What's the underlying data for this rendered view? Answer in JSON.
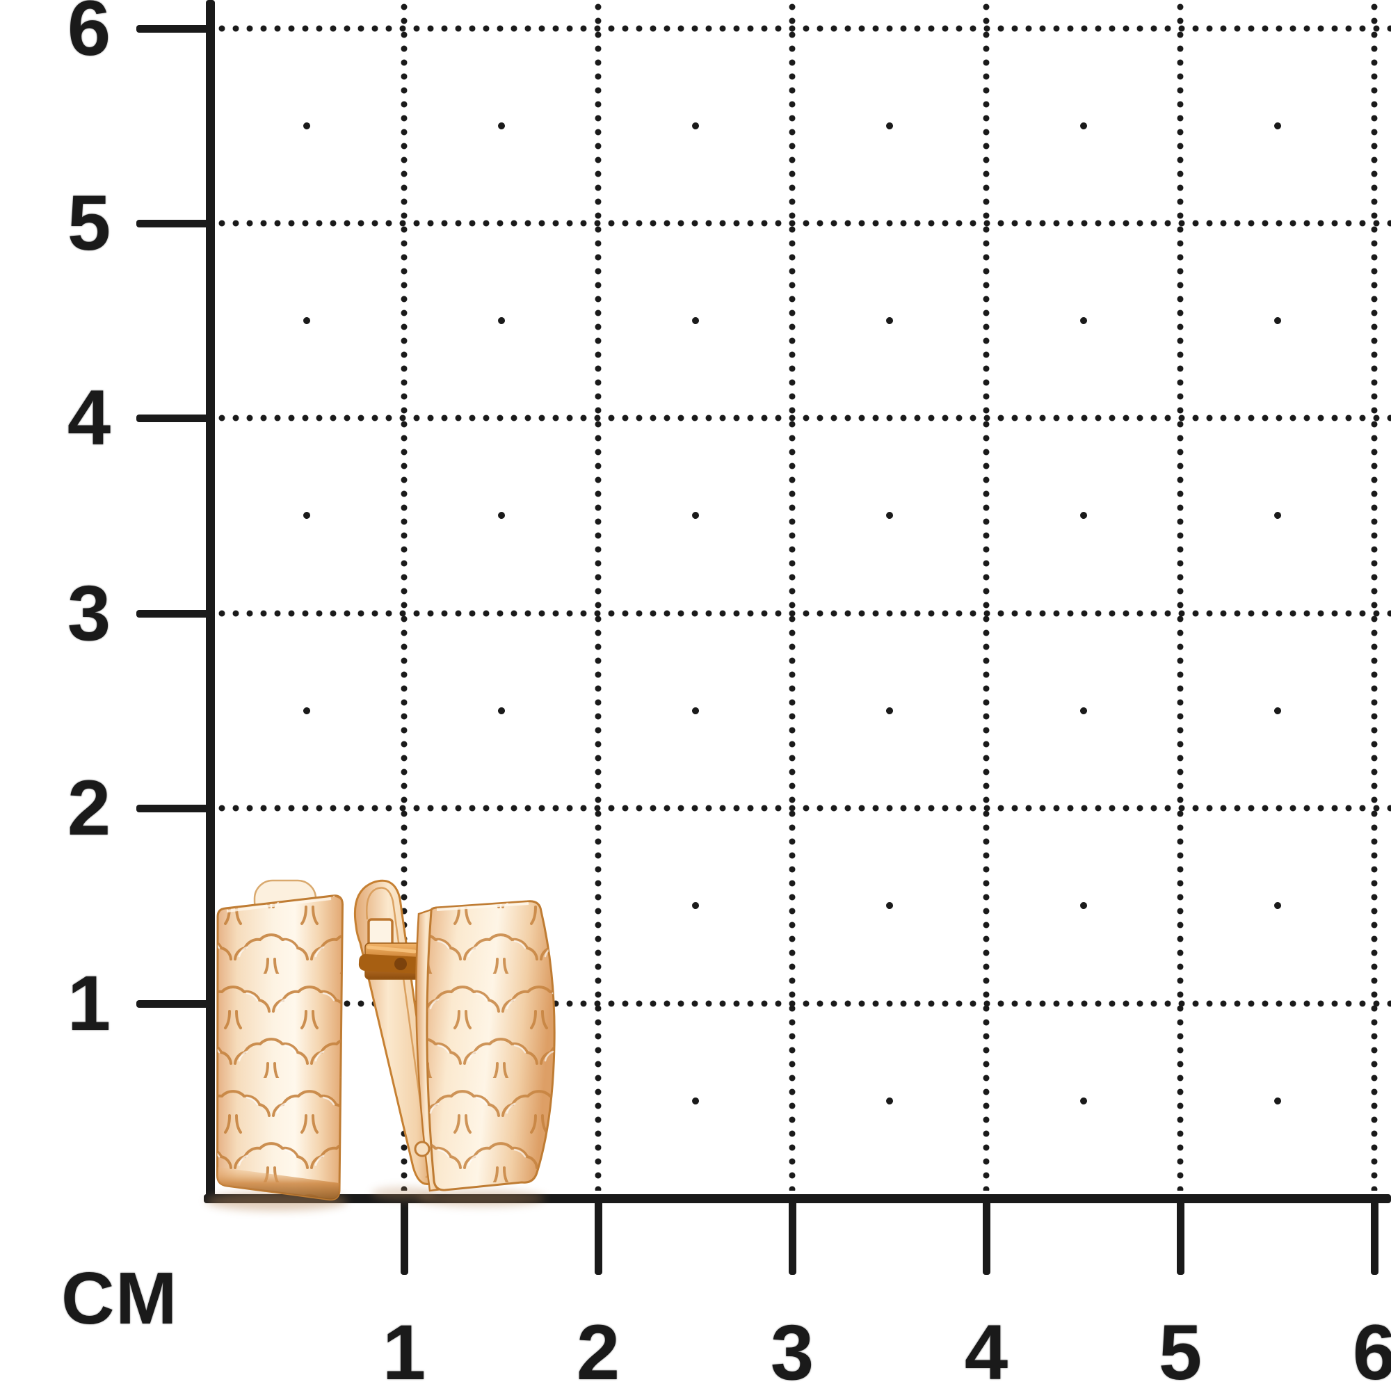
{
  "ruler": {
    "unit_label": "СМ",
    "left_axis_labels": [
      "6",
      "5",
      "4",
      "3",
      "2",
      "1"
    ],
    "bottom_axis_labels": [
      "1",
      "2",
      "3",
      "4",
      "5",
      "6"
    ]
  },
  "subject": {
    "name": "pair of rose-gold earrings with scalloped openwork pattern",
    "left_item": "earring band front view",
    "right_item": "earring side view with open english-lock clasp"
  },
  "colors": {
    "ink": "#1a1a1a",
    "background": "#ffffff",
    "gold_outline": "#c5813c",
    "gold_light": "#fdf2e1",
    "gold_mid": "#f3cfa5",
    "gold_deep": "#cd8a44",
    "hinge_dark": "#9a5a16"
  }
}
